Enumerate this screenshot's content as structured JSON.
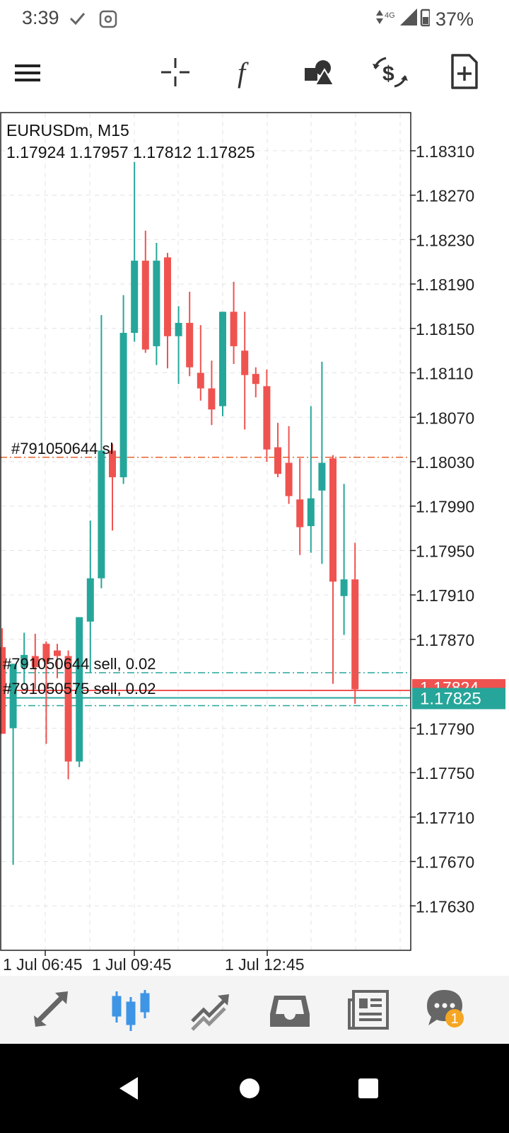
{
  "status_bar": {
    "time": "3:39",
    "network": "4G",
    "battery": "37%",
    "icons": [
      "check-icon",
      "cast-icon",
      "signal-icon",
      "battery-icon"
    ]
  },
  "toolbar": {
    "icons": [
      "menu-icon",
      "crosshair-icon",
      "indicators-icon",
      "objects-icon",
      "symbol-change-icon",
      "new-order-icon"
    ]
  },
  "chart": {
    "symbol_timeframe": "EURUSDm, M15",
    "ohlc": "1.17924 1.17957 1.17812 1.17825",
    "sl_label": "#791050644 sl",
    "order_label_1": "#791050644 sell, 0.02",
    "order_label_2": "#791050575 sell, 0.02",
    "bid_tag": "1.17824",
    "last_tag": "1.17825",
    "colors": {
      "bull": "#26a69a",
      "bear": "#ef5350",
      "sl_line": "#e8602c",
      "order_line": "#26a69a",
      "grid": "#e3e3e3"
    }
  },
  "chart_data": {
    "type": "candlestick",
    "title": "EURUSDm, M15",
    "y_ticks": [
      "1.18310",
      "1.18270",
      "1.18230",
      "1.18190",
      "1.18150",
      "1.18110",
      "1.18070",
      "1.18030",
      "1.17990",
      "1.17950",
      "1.17910",
      "1.17870",
      "1.17790",
      "1.17750",
      "1.17710",
      "1.17670",
      "1.17630"
    ],
    "x_ticks": [
      "1 Jul 06:45",
      "1 Jul 09:45",
      "1 Jul 12:45"
    ],
    "ylim": [
      1.1759,
      1.18345
    ],
    "levels": {
      "stop_loss": 1.18034,
      "order_1": 1.1784,
      "order_2": 1.17818,
      "bid": 1.17824,
      "last": 1.17825
    },
    "candles": [
      {
        "o": 1.17863,
        "h": 1.1788,
        "l": 1.17785,
        "c": 1.17785
      },
      {
        "o": 1.1779,
        "h": 1.17848,
        "l": 1.17667,
        "c": 1.17848
      },
      {
        "o": 1.17845,
        "h": 1.17876,
        "l": 1.1783,
        "c": 1.17856
      },
      {
        "o": 1.17855,
        "h": 1.17875,
        "l": 1.17825,
        "c": 1.17845
      },
      {
        "o": 1.17866,
        "h": 1.17868,
        "l": 1.17776,
        "c": 1.1785
      },
      {
        "o": 1.1786,
        "h": 1.17866,
        "l": 1.17835,
        "c": 1.17855
      },
      {
        "o": 1.17855,
        "h": 1.1786,
        "l": 1.17744,
        "c": 1.1776
      },
      {
        "o": 1.1776,
        "h": 1.1789,
        "l": 1.17755,
        "c": 1.1789
      },
      {
        "o": 1.17886,
        "h": 1.17977,
        "l": 1.1784,
        "c": 1.17925
      },
      {
        "o": 1.17925,
        "h": 1.18162,
        "l": 1.17916,
        "c": 1.1804
      },
      {
        "o": 1.1804,
        "h": 1.18046,
        "l": 1.17968,
        "c": 1.18016
      },
      {
        "o": 1.18016,
        "h": 1.1818,
        "l": 1.1801,
        "c": 1.18146
      },
      {
        "o": 1.18146,
        "h": 1.183,
        "l": 1.18138,
        "c": 1.18211
      },
      {
        "o": 1.18211,
        "h": 1.18238,
        "l": 1.18128,
        "c": 1.18131
      },
      {
        "o": 1.18134,
        "h": 1.18227,
        "l": 1.18117,
        "c": 1.18211
      },
      {
        "o": 1.18214,
        "h": 1.18218,
        "l": 1.18114,
        "c": 1.18143
      },
      {
        "o": 1.18143,
        "h": 1.1817,
        "l": 1.181,
        "c": 1.18155
      },
      {
        "o": 1.18155,
        "h": 1.18183,
        "l": 1.18107,
        "c": 1.18115
      },
      {
        "o": 1.1811,
        "h": 1.18153,
        "l": 1.18085,
        "c": 1.18096
      },
      {
        "o": 1.18096,
        "h": 1.18121,
        "l": 1.18063,
        "c": 1.18077
      },
      {
        "o": 1.1808,
        "h": 1.18165,
        "l": 1.18071,
        "c": 1.18165
      },
      {
        "o": 1.18165,
        "h": 1.18192,
        "l": 1.18118,
        "c": 1.18134
      },
      {
        "o": 1.1813,
        "h": 1.18165,
        "l": 1.18059,
        "c": 1.18108
      },
      {
        "o": 1.18109,
        "h": 1.18115,
        "l": 1.18088,
        "c": 1.181
      },
      {
        "o": 1.18098,
        "h": 1.18113,
        "l": 1.1803,
        "c": 1.18041
      },
      {
        "o": 1.18043,
        "h": 1.18065,
        "l": 1.18016,
        "c": 1.18019
      },
      {
        "o": 1.18029,
        "h": 1.18062,
        "l": 1.17992,
        "c": 1.17999
      },
      {
        "o": 1.17996,
        "h": 1.18033,
        "l": 1.17946,
        "c": 1.17971
      },
      {
        "o": 1.17972,
        "h": 1.1808,
        "l": 1.17948,
        "c": 1.17997
      },
      {
        "o": 1.18004,
        "h": 1.1812,
        "l": 1.17938,
        "c": 1.18029
      },
      {
        "o": 1.18033,
        "h": 1.18036,
        "l": 1.1783,
        "c": 1.17922
      },
      {
        "o": 1.17909,
        "h": 1.1801,
        "l": 1.17874,
        "c": 1.17924
      },
      {
        "o": 1.17924,
        "h": 1.17957,
        "l": 1.17812,
        "c": 1.17825
      }
    ]
  },
  "bottom_nav": {
    "items": [
      "quotes-icon",
      "chart-icon",
      "trade-icon",
      "history-icon",
      "news-icon",
      "chat-icon"
    ],
    "chat_badge": "1"
  },
  "system_nav": {
    "items": [
      "back-icon",
      "home-icon",
      "recents-icon"
    ]
  }
}
